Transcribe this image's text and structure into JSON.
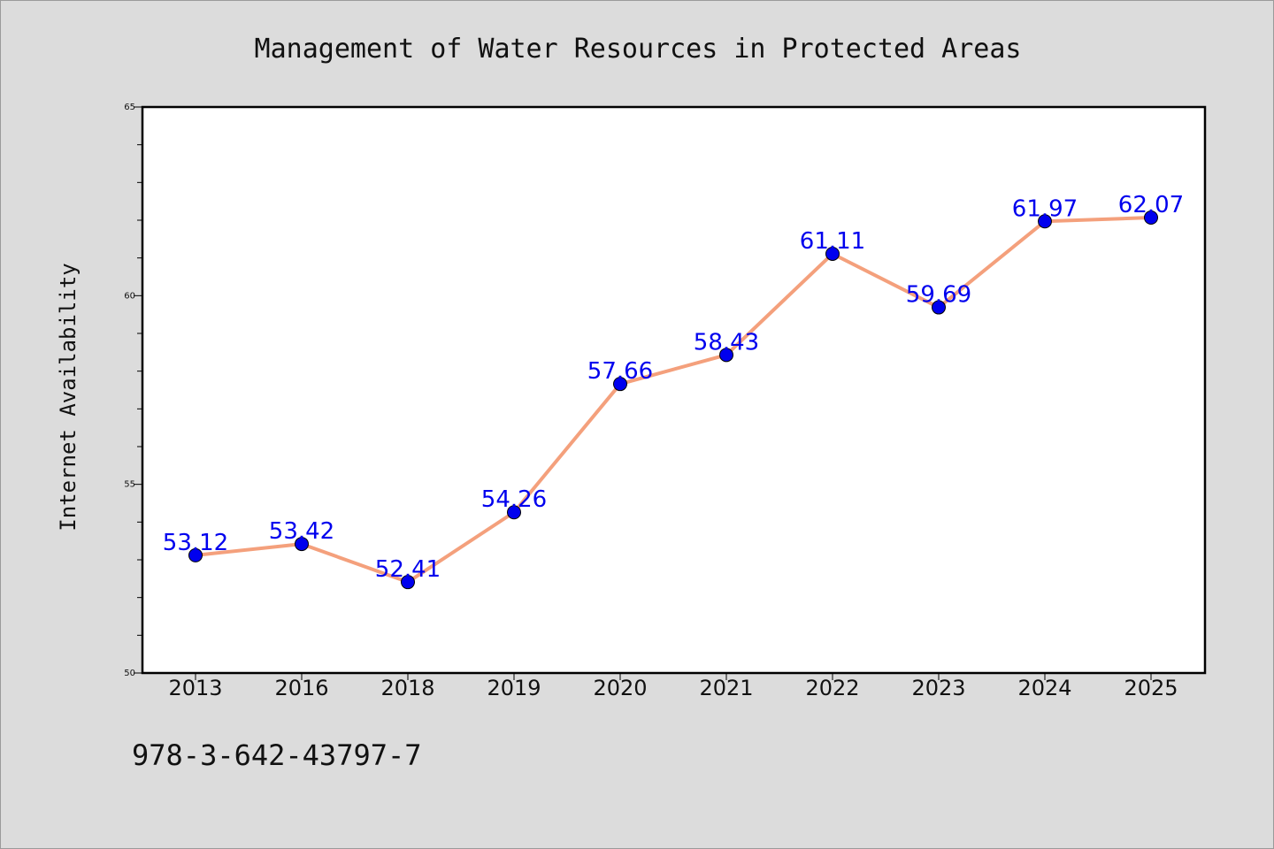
{
  "chart_data": {
    "type": "line",
    "title": "Management of Water Resources in Protected Areas",
    "xlabel": "",
    "ylabel": "Internet Availability",
    "categories": [
      "2013",
      "2016",
      "2018",
      "2019",
      "2020",
      "2021",
      "2022",
      "2023",
      "2024",
      "2025"
    ],
    "series": [
      {
        "values": [
          53.12,
          53.42,
          52.41,
          54.26,
          57.66,
          58.43,
          61.11,
          59.69,
          61.97,
          62.07
        ],
        "data_labels": [
          "53.12",
          "53.42",
          "52.41",
          "54.26",
          "57.66",
          "58.43",
          "61.11",
          "59.69",
          "61.97",
          "62.07"
        ]
      }
    ],
    "ylim": [
      50,
      65
    ],
    "yticks": [
      "50",
      "55",
      "60",
      "65"
    ],
    "grid": false,
    "legend": "none",
    "colors": {
      "line": "#f4a07c",
      "marker": "#0000ee",
      "label": "#0000ee",
      "plot_bg": "#ffffff",
      "page_bg": "#dcdcdc"
    }
  },
  "footer": {
    "isbn": "978-3-642-43797-7"
  }
}
